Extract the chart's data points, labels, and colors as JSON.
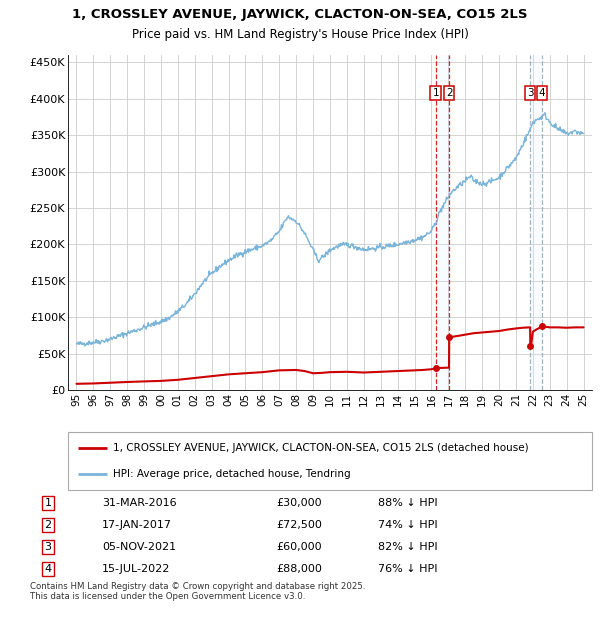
{
  "title1": "1, CROSSLEY AVENUE, JAYWICK, CLACTON-ON-SEA, CO15 2LS",
  "title2": "Price paid vs. HM Land Registry's House Price Index (HPI)",
  "hpi_color": "#7ab4d8",
  "price_color": "#cc0000",
  "shade_color": "#ddeeff",
  "transactions": [
    {
      "date_num": 2016.25,
      "price": 30000,
      "label": "1"
    },
    {
      "date_num": 2017.05,
      "price": 72500,
      "label": "2"
    },
    {
      "date_num": 2021.85,
      "price": 60000,
      "label": "3"
    },
    {
      "date_num": 2022.54,
      "price": 88000,
      "label": "4"
    }
  ],
  "legend_entries": [
    "1, CROSSLEY AVENUE, JAYWICK, CLACTON-ON-SEA, CO15 2LS (detached house)",
    "HPI: Average price, detached house, Tendring"
  ],
  "table_rows": [
    {
      "num": "1",
      "date": "31-MAR-2016",
      "price": "£30,000",
      "pct": "88% ↓ HPI"
    },
    {
      "num": "2",
      "date": "17-JAN-2017",
      "price": "£72,500",
      "pct": "74% ↓ HPI"
    },
    {
      "num": "3",
      "date": "05-NOV-2021",
      "price": "£60,000",
      "pct": "82% ↓ HPI"
    },
    {
      "num": "4",
      "date": "15-JUL-2022",
      "price": "£88,000",
      "pct": "76% ↓ HPI"
    }
  ],
  "footer": "Contains HM Land Registry data © Crown copyright and database right 2025.\nThis data is licensed under the Open Government Licence v3.0.",
  "ylim": [
    0,
    460000
  ],
  "xlim": [
    1994.5,
    2025.5
  ],
  "yticks": [
    0,
    50000,
    100000,
    150000,
    200000,
    250000,
    300000,
    350000,
    400000,
    450000
  ],
  "ytick_labels": [
    "£0",
    "£50K",
    "£100K",
    "£150K",
    "£200K",
    "£250K",
    "£300K",
    "£350K",
    "£400K",
    "£450K"
  ],
  "xticks": [
    1995,
    1996,
    1997,
    1998,
    1999,
    2000,
    2001,
    2002,
    2003,
    2004,
    2005,
    2006,
    2007,
    2008,
    2009,
    2010,
    2011,
    2012,
    2013,
    2014,
    2015,
    2016,
    2017,
    2018,
    2019,
    2020,
    2021,
    2022,
    2023,
    2024,
    2025
  ]
}
